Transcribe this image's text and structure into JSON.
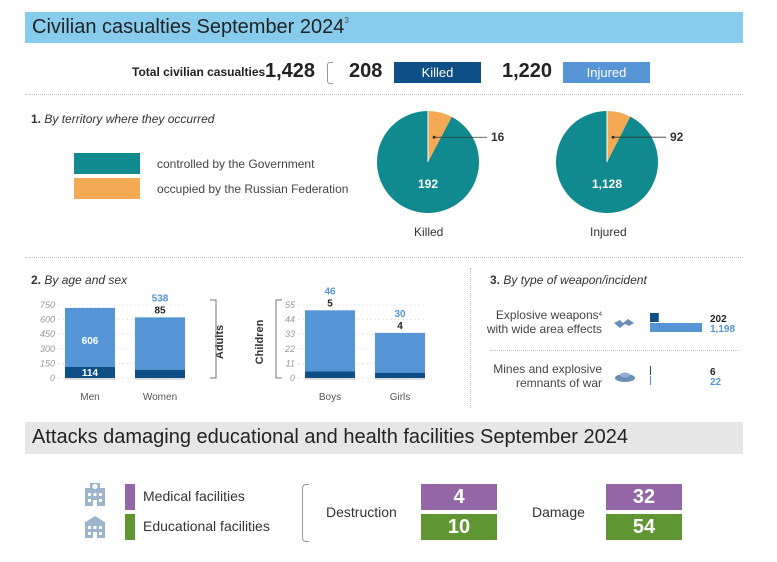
{
  "casualties": {
    "title": "Civilian casualties September 2024",
    "footnote": "3",
    "total_label": "Total civilian casualties",
    "total": "1,428",
    "killed": "208",
    "killed_label": "Killed",
    "injured": "1,220",
    "injured_label": "Injured"
  },
  "territory": {
    "section_num": "1.",
    "section_title": "By territory where they occurred",
    "legend": [
      "controlled by the Government",
      "occupied by the Russian Federation"
    ],
    "killed_caption": "Killed",
    "injured_caption": "Injured"
  },
  "age": {
    "section_num": "2.",
    "section_title": "By age and sex",
    "adults_label": "Adults",
    "children_label": "Children"
  },
  "weapon": {
    "section_num": "3.",
    "section_title": "By type of weapon/incident",
    "rows": [
      {
        "label1": "Explosive weapons",
        "label2": "with wide area effects",
        "footnote": "4"
      },
      {
        "label1": "Mines and explosive",
        "label2": "remnants of war"
      }
    ]
  },
  "colors": {
    "banner": "#87ccec",
    "teal": "#108a8e",
    "orange": "#f4a954",
    "dark_blue": "#0d4f86",
    "light_blue": "#5595d5",
    "purple": "#9366a5",
    "green": "#5f9632"
  },
  "facilities": {
    "title": "Attacks damaging educational and health facilities September 2024",
    "medical_label": "Medical facilities",
    "educational_label": "Educational facilities",
    "destruction_label": "Destruction",
    "damage_label": "Damage",
    "destruction_medical": "4",
    "destruction_educational": "10",
    "damage_medical": "32",
    "damage_educational": "54",
    "icons": [
      "hospital-icon",
      "school-icon"
    ]
  },
  "chart_data": [
    {
      "type": "pie",
      "title": "Killed",
      "slices": [
        {
          "label": "controlled by the Government",
          "value": 192
        },
        {
          "label": "occupied by the Russian Federation",
          "value": 16
        }
      ]
    },
    {
      "type": "pie",
      "title": "Injured",
      "slices": [
        {
          "label": "controlled by the Government",
          "value": 1128
        },
        {
          "label": "occupied by the Russian Federation",
          "value": 92
        }
      ]
    },
    {
      "type": "bar",
      "title": "Adults",
      "categories": [
        "Men",
        "Women"
      ],
      "ylim": [
        0,
        750
      ],
      "yticks": [
        0,
        150,
        300,
        450,
        600,
        750
      ],
      "ytick_labels": [
        "0",
        "150",
        "300",
        "450",
        "600",
        "750"
      ],
      "stacked": true,
      "series": [
        {
          "name": "Killed",
          "values": [
            114,
            85
          ]
        },
        {
          "name": "Injured",
          "values": [
            606,
            538
          ]
        }
      ],
      "labels": {
        "killed": [
          "114",
          "85"
        ],
        "injured": [
          "606",
          "538"
        ]
      }
    },
    {
      "type": "bar",
      "title": "Children",
      "categories": [
        "Boys",
        "Girls"
      ],
      "ylim": [
        0,
        55
      ],
      "yticks": [
        0,
        11,
        22,
        33,
        44,
        55
      ],
      "ytick_labels": [
        "0",
        "11",
        "22",
        "33",
        "44",
        "55"
      ],
      "stacked": true,
      "series": [
        {
          "name": "Killed",
          "values": [
            5,
            4
          ]
        },
        {
          "name": "Injured",
          "values": [
            46,
            30
          ]
        }
      ],
      "labels": {
        "killed": [
          "5",
          "4"
        ],
        "injured": [
          "46",
          "30"
        ]
      }
    },
    {
      "type": "bar",
      "title": "By type of weapon/incident",
      "categories": [
        "Explosive weapons with wide area effects",
        "Mines and explosive remnants of war"
      ],
      "series": [
        {
          "name": "Killed",
          "values": [
            202,
            6
          ]
        },
        {
          "name": "Injured",
          "values": [
            1198,
            22
          ]
        }
      ]
    }
  ]
}
